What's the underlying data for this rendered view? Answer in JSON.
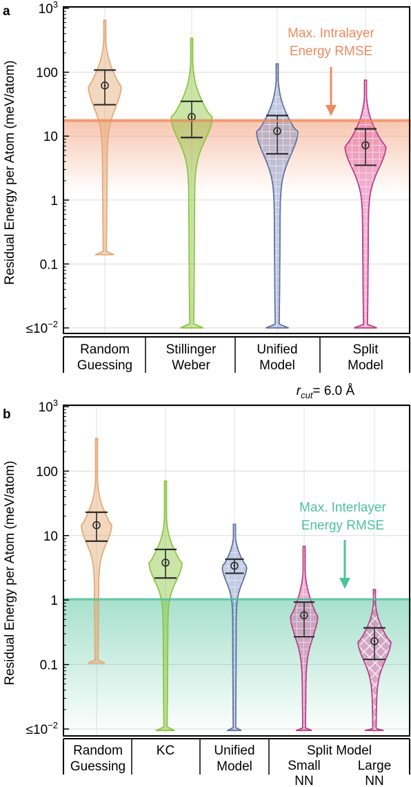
{
  "chart_data": [
    {
      "panel": "a",
      "type": "violin",
      "ylabel": "Residual Energy per Atom (meV/atom)",
      "yscale": "log",
      "ylim": [
        0.008,
        1000
      ],
      "yticks": [
        {
          "value": 1000,
          "label": "10",
          "sup": "3"
        },
        {
          "value": 100,
          "label": "100",
          "sup": ""
        },
        {
          "value": 10,
          "label": "10",
          "sup": ""
        },
        {
          "value": 1,
          "label": "1",
          "sup": ""
        },
        {
          "value": 0.1,
          "label": "0.1",
          "sup": ""
        },
        {
          "value": 0.01,
          "label": "≤10",
          "sup": "−2"
        }
      ],
      "categories": [
        "Random\nGuessing",
        "Stillinger\nWeber",
        "Unified\nModel",
        "Split\nModel"
      ],
      "group_annotation": {
        "text_italic": "r",
        "text_sub": "cut",
        "text_rest": "= 6.0 Å"
      },
      "threshold": {
        "label_line1": "Max. Intralayer",
        "label_line2": "Energy RMSE",
        "value": 16,
        "color": "#f08a5d"
      },
      "series": [
        {
          "category": "Random\nGuessing",
          "color": "#e5a873",
          "pattern": "none",
          "min": 0.14,
          "max": 650,
          "q1": 31,
          "q3": 108,
          "mean": 62
        },
        {
          "category": "Stillinger\nWeber",
          "color": "#8cc63f",
          "pattern": "none",
          "min": 0.01,
          "max": 340,
          "q1": 9.5,
          "q3": 35,
          "mean": 20
        },
        {
          "category": "Unified\nModel",
          "color": "#7b8fc6",
          "pattern": "grid",
          "min": 0.01,
          "max": 135,
          "q1": 5.3,
          "q3": 21,
          "mean": 12
        },
        {
          "category": "Split\nModel",
          "color": "#e055a5",
          "pattern": "grid",
          "min": 0.01,
          "max": 75,
          "q1": 3.5,
          "q3": 13,
          "mean": 7.2
        }
      ]
    },
    {
      "panel": "b",
      "type": "violin",
      "ylabel": "Residual Energy per Atom (meV/atom)",
      "yscale": "log",
      "ylim": [
        0.008,
        1000
      ],
      "yticks": [
        {
          "value": 1000,
          "label": "10",
          "sup": "3"
        },
        {
          "value": 100,
          "label": "100",
          "sup": ""
        },
        {
          "value": 10,
          "label": "10",
          "sup": ""
        },
        {
          "value": 1,
          "label": "1",
          "sup": ""
        },
        {
          "value": 0.1,
          "label": "0.1",
          "sup": ""
        },
        {
          "value": 0.01,
          "label": "≤10",
          "sup": "−2"
        }
      ],
      "categories": [
        "Random\nGuessing",
        "KC",
        "Unified\nModel",
        "Split Model\nSmall\nNN",
        "Large\nNN"
      ],
      "group_label": "Split Model",
      "threshold": {
        "label_line1": "Max. Interlayer",
        "label_line2": "Energy RMSE",
        "value": 1.0,
        "color": "#4ec29a"
      },
      "series": [
        {
          "category": "Random\nGuessing",
          "color": "#e5a873",
          "pattern": "none",
          "min": 0.105,
          "max": 320,
          "q1": 8.2,
          "q3": 23,
          "mean": 14.5
        },
        {
          "category": "KC",
          "color": "#8cc63f",
          "pattern": "none",
          "min": 0.0095,
          "max": 70,
          "q1": 2.2,
          "q3": 6.1,
          "mean": 3.8
        },
        {
          "category": "Unified\nModel",
          "color": "#7b8fc6",
          "pattern": "grid",
          "min": 0.0095,
          "max": 15,
          "q1": 2.6,
          "q3": 4.3,
          "mean": 3.4
        },
        {
          "category": "Small\nNN",
          "color": "#e055a5",
          "pattern": "grid",
          "min": 0.0095,
          "max": 6.8,
          "q1": 0.27,
          "q3": 0.93,
          "mean": 0.58
        },
        {
          "category": "Large\nNN",
          "color": "#e055a5",
          "pattern": "cross",
          "min": 0.0095,
          "max": 1.45,
          "q1": 0.12,
          "q3": 0.37,
          "mean": 0.23
        }
      ]
    }
  ],
  "ui": {
    "panel_a_label": "a",
    "panel_b_label": "b",
    "a_cat_1_line1": "Random",
    "a_cat_1_line2": "Guessing",
    "a_cat_2_line1": "Stillinger",
    "a_cat_2_line2": "Weber",
    "a_cat_3_line1": "Unified",
    "a_cat_3_line2": "Model",
    "a_cat_4_line1": "Split",
    "a_cat_4_line2": "Model",
    "b_cat_1_line1": "Random",
    "b_cat_1_line2": "Guessing",
    "b_cat_2_line1": "KC",
    "b_cat_3_line1": "Unified",
    "b_cat_3_line2": "Model",
    "b_group": "Split Model",
    "b_cat_4_line1": "Small",
    "b_cat_4_line2": "NN",
    "b_cat_5_line1": "Large",
    "b_cat_5_line2": "NN"
  }
}
